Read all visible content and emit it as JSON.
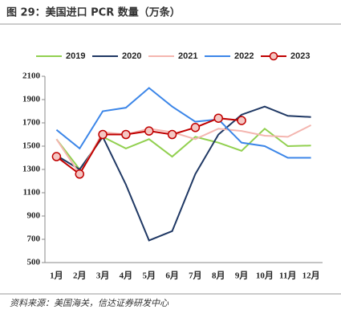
{
  "chart_data": {
    "type": "line",
    "title": "图 29：美国进口 PCR 数量（万条）",
    "source": "资料来源：美国海关，信达证券研发中心",
    "categories": [
      "1月",
      "2月",
      "3月",
      "4月",
      "5月",
      "6月",
      "7月",
      "8月",
      "9月",
      "10月",
      "11月",
      "12月"
    ],
    "series": [
      {
        "name": "2019",
        "color": "#92d050",
        "values": [
          1560,
          1300,
          1580,
          1480,
          1560,
          1410,
          1580,
          1530,
          1460,
          1650,
          1500,
          1505
        ]
      },
      {
        "name": "2020",
        "color": "#1f3864",
        "values": [
          1420,
          1300,
          1580,
          1170,
          690,
          770,
          1260,
          1600,
          1770,
          1840,
          1760,
          1750
        ]
      },
      {
        "name": "2021",
        "color": "#f4b6b0",
        "values": [
          1560,
          1260,
          1620,
          1600,
          1650,
          1620,
          1560,
          1650,
          1630,
          1590,
          1580,
          1680
        ]
      },
      {
        "name": "2022",
        "color": "#3c86e8",
        "values": [
          1640,
          1480,
          1800,
          1830,
          2000,
          1840,
          1710,
          1730,
          1530,
          1500,
          1400,
          1400
        ]
      },
      {
        "name": "2023",
        "color": "#c00000",
        "marker": "circle",
        "values": [
          1410,
          1260,
          1600,
          1600,
          1630,
          1600,
          1660,
          1740,
          1720,
          null,
          null,
          null
        ]
      }
    ],
    "ylim": [
      500,
      2100
    ],
    "yticks": [
      500,
      700,
      900,
      1100,
      1300,
      1500,
      1700,
      1900,
      2100
    ]
  }
}
